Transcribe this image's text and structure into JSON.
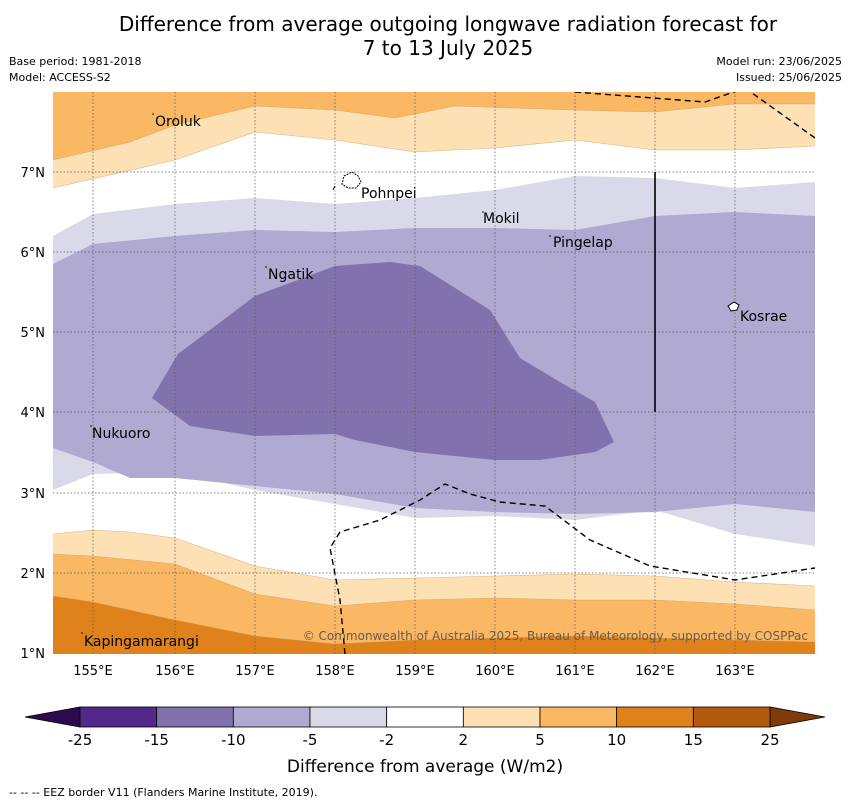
{
  "header": {
    "title_line1": "Difference from average outgoing longwave radiation forecast for",
    "title_line2": "7 to 13 July 2025",
    "base_period": "Base period: 1981-2018",
    "model": "Model: ACCESS-S2",
    "model_run": "Model run: 23/06/2025",
    "issued": "Issued: 25/06/2025"
  },
  "map": {
    "lon_ticks": [
      "155°E",
      "156°E",
      "157°E",
      "158°E",
      "159°E",
      "160°E",
      "161°E",
      "162°E",
      "163°E"
    ],
    "lat_ticks": [
      "7°N",
      "6°N",
      "5°N",
      "4°N",
      "3°N",
      "2°N",
      "1°N"
    ],
    "places": [
      {
        "name": "Oroluk"
      },
      {
        "name": "Pohnpei"
      },
      {
        "name": "Mokil"
      },
      {
        "name": "Pingelap"
      },
      {
        "name": "Ngatik"
      },
      {
        "name": "Kosrae"
      },
      {
        "name": "Nukuoro"
      },
      {
        "name": "Kapingamarangi"
      }
    ],
    "copyright": "© Commonwealth of Australia 2025, Bureau of Meteorology, supported by COSPPac"
  },
  "colorbar": {
    "labels": [
      "-25",
      "-15",
      "-10",
      "-5",
      "-2",
      "2",
      "5",
      "10",
      "15",
      "25"
    ],
    "colors": [
      "#52288a",
      "#8072ac",
      "#b0a9d1",
      "#d9d9ea",
      "#ffffff",
      "#fde0b4",
      "#fbb864",
      "#e0821c",
      "#b45a0e"
    ],
    "extend_low_color": "#2d0a4f",
    "extend_high_color": "#7f3b08",
    "label": "Difference from average (W/m2)"
  },
  "footer": {
    "eez_note": "--  --  -- EEZ border V11 (Flanders Marine Institute, 2019)."
  }
}
